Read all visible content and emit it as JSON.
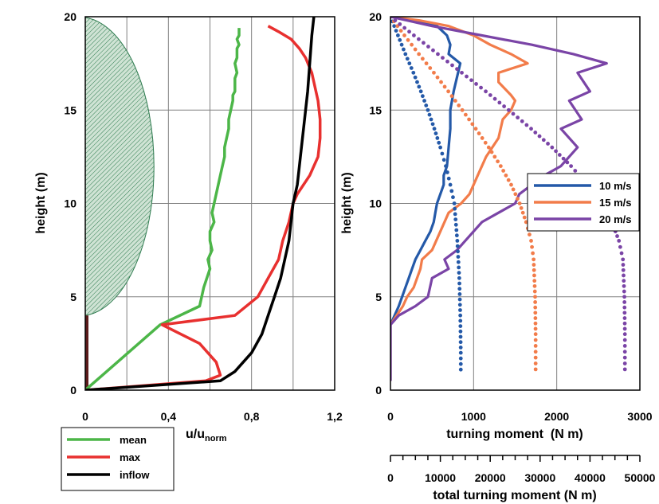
{
  "colors": {
    "mean": "#4cb648",
    "max": "#e8302f",
    "inflow": "#000000",
    "s10": "#2459a8",
    "s15": "#f27c4a",
    "s20": "#7a44a6",
    "canopy_fill": "#cfe3d4",
    "canopy_hatch": "#2e7b4f",
    "trunk": "#5a1a1a",
    "grid": "#808080"
  },
  "chart_data": [
    {
      "type": "line",
      "xlabel": "u/u",
      "xlabel_sub": "norm",
      "ylabel": "height (m)",
      "xlim": [
        0,
        1.2
      ],
      "ylim": [
        0,
        20
      ],
      "xticks": [
        "0",
        "0,4",
        "0,8",
        "1,2"
      ],
      "yticks": [
        "0",
        "5",
        "10",
        "15",
        "20"
      ],
      "grid": true,
      "legend_position": "below-left",
      "annotations": [
        "canopy (hatched half-ellipse, height 4–20 m)",
        "trunk (0–4 m)"
      ],
      "series": [
        {
          "name": "mean",
          "x": [
            0.0,
            0.36,
            0.55,
            0.57,
            0.6,
            0.59,
            0.61,
            0.6,
            0.6,
            0.62,
            0.61,
            0.62,
            0.63,
            0.64,
            0.65,
            0.66,
            0.67,
            0.67,
            0.68,
            0.69,
            0.69,
            0.7,
            0.71,
            0.71,
            0.72,
            0.72,
            0.72,
            0.73,
            0.72,
            0.73,
            0.73,
            0.73,
            0.74,
            0.73,
            0.74,
            0.74
          ],
          "y": [
            0.0,
            3.5,
            4.5,
            5.5,
            6.5,
            7.0,
            7.5,
            8.0,
            8.5,
            9.0,
            9.5,
            10.0,
            10.5,
            11.0,
            11.5,
            12.0,
            12.5,
            13.0,
            13.5,
            14.0,
            14.5,
            15.0,
            15.5,
            15.8,
            16.0,
            16.3,
            16.7,
            17.0,
            17.5,
            17.8,
            18.0,
            18.3,
            18.5,
            18.8,
            19.0,
            19.4
          ]
        },
        {
          "name": "max",
          "x": [
            0.0,
            0.58,
            0.65,
            0.63,
            0.55,
            0.37,
            0.72,
            0.83,
            0.88,
            0.93,
            0.95,
            0.98,
            1.0,
            1.02,
            1.05,
            1.08,
            1.1,
            1.12,
            1.13,
            1.13,
            1.12,
            1.1,
            1.09,
            1.06,
            1.03,
            0.99,
            0.93,
            0.88
          ],
          "y": [
            0.0,
            0.5,
            0.8,
            1.5,
            2.5,
            3.5,
            4.0,
            5.0,
            6.0,
            7.0,
            8.0,
            9.0,
            10.0,
            10.5,
            11.0,
            11.5,
            12.0,
            12.5,
            13.5,
            14.5,
            15.5,
            16.5,
            17.0,
            17.8,
            18.3,
            18.8,
            19.2,
            19.5
          ]
        },
        {
          "name": "inflow",
          "x": [
            0.0,
            0.65,
            0.72,
            0.8,
            0.85,
            0.88,
            0.91,
            0.94,
            0.96,
            0.98,
            0.99,
            1.0,
            1.02,
            1.03,
            1.04,
            1.05,
            1.06,
            1.07,
            1.08,
            1.09,
            1.1
          ],
          "y": [
            0.0,
            0.5,
            1.0,
            2.0,
            3.0,
            4.0,
            5.0,
            6.0,
            7.0,
            8.0,
            9.0,
            10.0,
            11.0,
            12.0,
            13.0,
            14.0,
            15.0,
            16.0,
            17.5,
            19.0,
            20.0
          ]
        }
      ]
    },
    {
      "type": "line",
      "xlabel": "turning moment  (N m)",
      "ylabel": "height (m)",
      "x2label": "total turning moment (N m)",
      "xlim": [
        0,
        3000
      ],
      "ylim": [
        0,
        20
      ],
      "x2lim": [
        0,
        50000
      ],
      "xticks": [
        "0",
        "1000",
        "2000",
        "3000"
      ],
      "yticks": [
        "0",
        "5",
        "10",
        "15",
        "20"
      ],
      "x2ticks": [
        "0",
        "10000",
        "20000",
        "30000",
        "40000",
        "50000"
      ],
      "grid": true,
      "legend_position": "right",
      "note": "solid lines: turning moment; dotted lines: total turning moment (secondary axis)",
      "series": [
        {
          "name": "10 m/s",
          "style": "solid",
          "x": [
            0,
            0,
            100,
            140,
            180,
            220,
            260,
            300,
            360,
            420,
            480,
            520,
            540,
            560,
            600,
            640,
            640,
            680,
            700,
            720,
            720,
            760,
            840,
            700,
            720,
            680,
            560,
            420,
            0
          ],
          "y": [
            0.5,
            3.5,
            4.5,
            5.0,
            5.5,
            6.0,
            6.5,
            7.0,
            7.5,
            8.0,
            8.5,
            9.0,
            9.5,
            10.0,
            10.5,
            11.0,
            11.5,
            12.0,
            13.0,
            14.0,
            15.0,
            16.0,
            17.5,
            18.0,
            18.5,
            19.0,
            19.5,
            19.7,
            20.0
          ]
        },
        {
          "name": "15 m/s",
          "style": "solid",
          "x": [
            0,
            0,
            150,
            200,
            280,
            360,
            380,
            500,
            600,
            700,
            850,
            950,
            1050,
            1150,
            1300,
            1350,
            1450,
            1500,
            1450,
            1300,
            1300,
            1650,
            1450,
            1200,
            1000,
            700,
            350,
            0
          ],
          "y": [
            0.5,
            3.5,
            4.5,
            5.0,
            5.5,
            6.5,
            7.0,
            7.5,
            8.5,
            9.5,
            10.0,
            10.5,
            11.5,
            12.5,
            13.5,
            14.5,
            15.0,
            15.5,
            15.8,
            16.5,
            17.0,
            17.5,
            18.0,
            18.5,
            19.0,
            19.5,
            19.8,
            20.0
          ]
        },
        {
          "name": "20 m/s",
          "style": "solid",
          "x": [
            0,
            0,
            100,
            300,
            450,
            500,
            700,
            650,
            800,
            1000,
            1100,
            1300,
            1500,
            1550,
            1700,
            1850,
            2050,
            2250,
            2050,
            2300,
            2150,
            2400,
            2250,
            2600,
            2200,
            1700,
            1100,
            500,
            0
          ],
          "y": [
            0.5,
            3.5,
            4.0,
            4.5,
            5.0,
            6.0,
            6.5,
            7.0,
            7.5,
            8.5,
            9.0,
            9.5,
            10.0,
            10.5,
            11.0,
            11.5,
            12.0,
            13.0,
            14.0,
            14.5,
            15.5,
            16.0,
            17.0,
            17.5,
            18.0,
            18.5,
            19.0,
            19.5,
            20.0
          ]
        },
        {
          "name": "10 m/s",
          "style": "dotted",
          "axis": "total",
          "x": [
            0,
            1500,
            3000,
            4600,
            6100,
            7500,
            8800,
            10000,
            11100,
            12000,
            12800,
            13400,
            13800,
            14000,
            14100,
            14100
          ],
          "y": [
            20.0,
            19.0,
            18.0,
            17.0,
            16.0,
            15.0,
            14.0,
            13.0,
            12.0,
            11.0,
            10.0,
            8.0,
            6.0,
            4.0,
            2.0,
            0.8
          ]
        },
        {
          "name": "15 m/s",
          "style": "dotted",
          "axis": "total",
          "x": [
            0,
            2800,
            5700,
            8700,
            11600,
            14400,
            17100,
            19700,
            22100,
            24200,
            25900,
            27200,
            28200,
            28700,
            29000,
            29100,
            29100
          ],
          "y": [
            20.0,
            19.0,
            18.0,
            17.0,
            16.0,
            15.0,
            14.0,
            13.0,
            12.0,
            11.0,
            10.0,
            9.0,
            8.0,
            7.0,
            5.0,
            3.0,
            0.8
          ]
        },
        {
          "name": "20 m/s",
          "style": "dotted",
          "axis": "total",
          "x": [
            0,
            4700,
            9500,
            14300,
            19100,
            23700,
            28200,
            32400,
            36200,
            39500,
            42300,
            44400,
            45800,
            46600,
            46900,
            47000,
            47000
          ],
          "y": [
            20.0,
            19.0,
            18.0,
            17.0,
            16.0,
            15.0,
            14.0,
            13.0,
            12.0,
            11.0,
            10.0,
            9.0,
            8.0,
            7.0,
            5.0,
            3.0,
            0.8
          ]
        }
      ]
    }
  ]
}
